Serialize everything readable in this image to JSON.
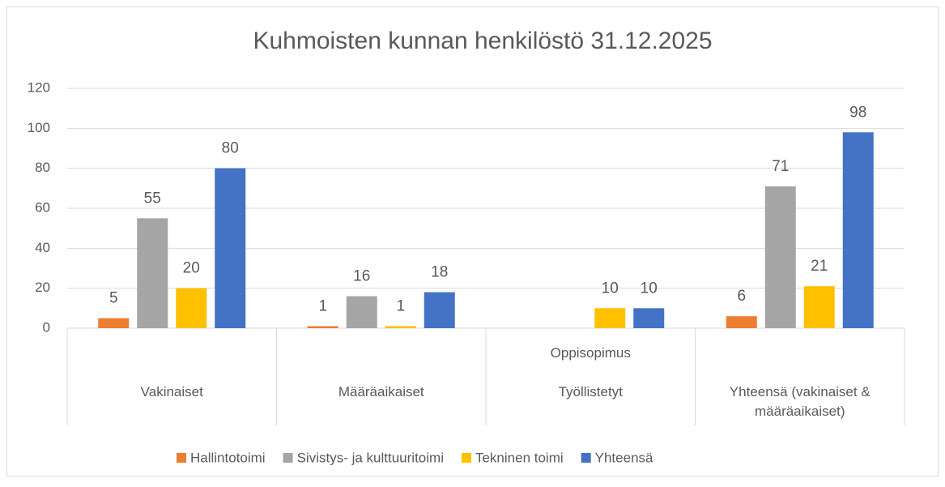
{
  "chart_data": {
    "type": "bar",
    "title": "Kuhmoisten kunnan henkilöstö 31.12.2025",
    "categories": [
      "Vakinaiset",
      "Määräaikaiset",
      "Oppisopimus\n\nTyöllistetyt",
      "Yhteensä (vakinaiset & määräaikaiset)"
    ],
    "series": [
      {
        "name": "Hallintotoimi",
        "color": "#ed7d31",
        "values": [
          5,
          1,
          null,
          6
        ]
      },
      {
        "name": "Sivistys- ja kulttuuritoimi",
        "color": "#a5a5a5",
        "values": [
          55,
          16,
          null,
          71
        ]
      },
      {
        "name": "Tekninen toimi",
        "color": "#ffc000",
        "values": [
          20,
          1,
          10,
          21
        ]
      },
      {
        "name": "Yhteensä",
        "color": "#4472c4",
        "values": [
          80,
          18,
          10,
          98
        ]
      }
    ],
    "ylim": [
      0,
      120
    ],
    "yticks": [
      0,
      20,
      40,
      60,
      80,
      100,
      120
    ],
    "grid": true,
    "legend": "bottom"
  }
}
